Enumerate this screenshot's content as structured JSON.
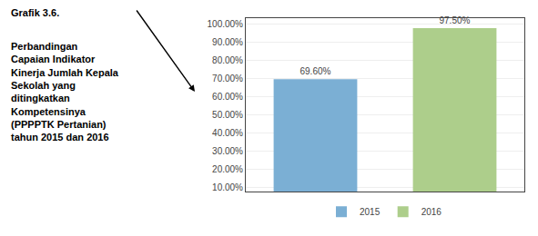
{
  "chart_data": {
    "type": "bar",
    "title": "Grafik 3.6.",
    "annotations": [
      "Perbandingan\nCapaian Indikator\nKinerja Jumlah Kepala\nSekolah yang\nditingkatkan\nKompetensinya\n(PPPPTK Pertanian)\ntahun 2015 dan 2016"
    ],
    "categories": [
      "2015",
      "2016"
    ],
    "values": [
      69.6,
      97.5
    ],
    "value_labels": [
      "69.60%",
      "97.50%"
    ],
    "colors": [
      "#7BAFD4",
      "#ADCE8B"
    ],
    "data_labels": true,
    "ylim": [
      8,
      103
    ],
    "yticks": [
      {
        "value": 10,
        "label": "10.00%"
      },
      {
        "value": 20,
        "label": "20.00%"
      },
      {
        "value": 30,
        "label": "30.00%"
      },
      {
        "value": 40,
        "label": "40.00%"
      },
      {
        "value": 50,
        "label": "50.00%"
      },
      {
        "value": 60,
        "label": "60.00%"
      },
      {
        "value": 70,
        "label": "70.00%"
      },
      {
        "value": 80,
        "label": "80.00%"
      },
      {
        "value": 90,
        "label": "90.00%"
      },
      {
        "value": 100,
        "label": "100.00%"
      }
    ],
    "grid": true,
    "legend": "bottom",
    "tick_labels": "y"
  }
}
